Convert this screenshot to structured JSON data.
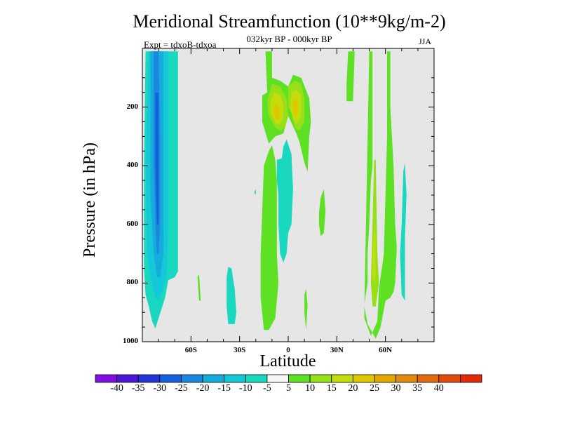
{
  "chart_data": {
    "type": "contour",
    "title": "Meridional Streamfunction (10**9kg/m-2)",
    "subtitle": "032kyr BP - 000kyr BP",
    "expt_label": "Expt = tdxoB-tdxoa",
    "season": "JJA",
    "xlabel": "Latitude",
    "ylabel": "Pressure (in hPa)",
    "xlim": [
      -90,
      90
    ],
    "ylim": [
      1000,
      0
    ],
    "y_reversed": true,
    "x_ticks": [
      {
        "value": -60,
        "label": "60S"
      },
      {
        "value": -30,
        "label": "30S"
      },
      {
        "value": 0,
        "label": "0"
      },
      {
        "value": 30,
        "label": "30N"
      },
      {
        "value": 60,
        "label": "60N"
      }
    ],
    "y_ticks": [
      {
        "value": 200,
        "label": "200"
      },
      {
        "value": 400,
        "label": "400"
      },
      {
        "value": 600,
        "label": "600"
      },
      {
        "value": 800,
        "label": "800"
      },
      {
        "value": 1000,
        "label": "1000"
      }
    ],
    "background_color": "#e6e6e6",
    "colorbar": {
      "colors": [
        "#7f10e0",
        "#4b18d8",
        "#2535d6",
        "#1560dc",
        "#1a88e0",
        "#15acdc",
        "#14c8d8",
        "#1ad8c0",
        "#f5f5f5",
        "#5ee024",
        "#96e018",
        "#c2dc0c",
        "#e0c800",
        "#e0a800",
        "#e08a10",
        "#e06a10",
        "#e04c0c",
        "#e02a08"
      ],
      "tick_labels": [
        "-40",
        "-35",
        "-30",
        "-25",
        "-20",
        "-15",
        "-10",
        "-5",
        "5",
        "10",
        "15",
        "20",
        "25",
        "30",
        "35",
        "40"
      ]
    },
    "regions": [
      {
        "level": -5,
        "points": [
          [
            -88,
            10
          ],
          [
            -80,
            10
          ],
          [
            -76,
            10
          ],
          [
            -71,
            10
          ],
          [
            -68,
            10
          ],
          [
            -68,
            200
          ],
          [
            -68,
            400
          ],
          [
            -68,
            600
          ],
          [
            -68,
            760
          ],
          [
            -70,
            780
          ],
          [
            -74,
            790
          ],
          [
            -76,
            850
          ],
          [
            -80,
            920
          ],
          [
            -82,
            955
          ],
          [
            -84,
            930
          ],
          [
            -86,
            880
          ],
          [
            -88,
            840
          ],
          [
            -89,
            750
          ],
          [
            -89,
            400
          ]
        ]
      },
      {
        "level": -10,
        "points": [
          [
            -86,
            10
          ],
          [
            -78,
            10
          ],
          [
            -74,
            10
          ],
          [
            -74,
            300
          ],
          [
            -74,
            600
          ],
          [
            -75,
            780
          ],
          [
            -78,
            830
          ],
          [
            -80,
            860
          ],
          [
            -82,
            850
          ],
          [
            -85,
            780
          ],
          [
            -87,
            700
          ],
          [
            -88,
            400
          ]
        ]
      },
      {
        "level": -15,
        "points": [
          [
            -85,
            10
          ],
          [
            -79,
            10
          ],
          [
            -77,
            10
          ],
          [
            -77,
            400
          ],
          [
            -77,
            700
          ],
          [
            -79,
            780
          ],
          [
            -81,
            780
          ],
          [
            -83,
            700
          ],
          [
            -85,
            500
          ]
        ]
      },
      {
        "level": -20,
        "points": [
          [
            -83,
            10
          ],
          [
            -80,
            10
          ],
          [
            -79,
            300
          ],
          [
            -79,
            600
          ],
          [
            -80,
            700
          ],
          [
            -81,
            700
          ],
          [
            -82,
            600
          ],
          [
            -83,
            400
          ]
        ]
      },
      {
        "level": -25,
        "points": [
          [
            -82,
            150
          ],
          [
            -80,
            150
          ],
          [
            -80,
            350
          ],
          [
            -80,
            600
          ],
          [
            -81,
            600
          ],
          [
            -82,
            400
          ]
        ]
      },
      {
        "level": -5,
        "points": [
          [
            -38,
            780
          ],
          [
            -37,
            745
          ],
          [
            -35,
            750
          ],
          [
            -33,
            820
          ],
          [
            -32,
            900
          ],
          [
            -33,
            940
          ],
          [
            -37,
            940
          ],
          [
            -38,
            880
          ]
        ]
      },
      {
        "level": -5,
        "points": [
          [
            -7,
            380
          ],
          [
            -4,
            375
          ],
          [
            -3,
            335
          ],
          [
            -1,
            310
          ],
          [
            2,
            360
          ],
          [
            3,
            480
          ],
          [
            2,
            600
          ],
          [
            0,
            630
          ],
          [
            -1,
            700
          ],
          [
            -3,
            730
          ],
          [
            -5,
            700
          ],
          [
            -6,
            600
          ],
          [
            -6,
            500
          ],
          [
            -7,
            450
          ]
        ]
      },
      {
        "level": -5,
        "points": [
          [
            -21,
            490
          ],
          [
            -20,
            480
          ],
          [
            -20,
            500
          ]
        ]
      },
      {
        "level": -5,
        "points": [
          [
            71,
            420
          ],
          [
            72,
            390
          ],
          [
            73,
            500
          ],
          [
            72,
            650
          ],
          [
            72,
            860
          ],
          [
            70,
            840
          ],
          [
            69,
            700
          ],
          [
            70,
            600
          ]
        ]
      },
      {
        "level": 5,
        "points": [
          [
            -14,
            10
          ],
          [
            -10,
            10
          ],
          [
            -10,
            100
          ],
          [
            -5,
            110
          ],
          [
            0,
            130
          ],
          [
            3,
            90
          ],
          [
            8,
            100
          ],
          [
            13,
            170
          ],
          [
            14,
            250
          ],
          [
            13,
            300
          ],
          [
            12,
            420
          ],
          [
            10,
            390
          ],
          [
            7,
            320
          ],
          [
            5,
            290
          ],
          [
            0,
            230
          ],
          [
            -3,
            290
          ],
          [
            -8,
            300
          ],
          [
            -12,
            325
          ],
          [
            -16,
            250
          ],
          [
            -16,
            160
          ],
          [
            -13,
            150
          ]
        ]
      },
      {
        "level": 5,
        "points": [
          [
            -12,
            350
          ],
          [
            -10,
            330
          ],
          [
            -8,
            380
          ],
          [
            -7,
            450
          ],
          [
            -7,
            700
          ],
          [
            -6,
            800
          ],
          [
            -8,
            920
          ],
          [
            -12,
            960
          ],
          [
            -15,
            960
          ],
          [
            -17,
            850
          ],
          [
            -17,
            700
          ],
          [
            -16,
            550
          ],
          [
            -15,
            400
          ]
        ]
      },
      {
        "level": 5,
        "points": [
          [
            20,
            510
          ],
          [
            22,
            480
          ],
          [
            23,
            555
          ],
          [
            22,
            630
          ],
          [
            20,
            640
          ],
          [
            19,
            600
          ],
          [
            19,
            560
          ]
        ]
      },
      {
        "level": 5,
        "points": [
          [
            10,
            840
          ],
          [
            11,
            820
          ],
          [
            12,
            875
          ],
          [
            11,
            960
          ],
          [
            10,
            900
          ]
        ]
      },
      {
        "level": 5,
        "points": [
          [
            -55,
            770
          ],
          [
            -56,
            780
          ],
          [
            -55,
            860
          ],
          [
            -54,
            860
          ]
        ]
      },
      {
        "level": 5,
        "points": [
          [
            37,
            10
          ],
          [
            41,
            10
          ],
          [
            40,
            180
          ],
          [
            36,
            180
          ],
          [
            36,
            120
          ]
        ]
      },
      {
        "level": 5,
        "points": [
          [
            50,
            10
          ],
          [
            52,
            10
          ],
          [
            52,
            100
          ],
          [
            52,
            200
          ],
          [
            52,
            400
          ],
          [
            51,
            450
          ],
          [
            50,
            600
          ],
          [
            49,
            700
          ],
          [
            49,
            800
          ],
          [
            47,
            870
          ],
          [
            47,
            920
          ],
          [
            51,
            980
          ],
          [
            55,
            930
          ],
          [
            56,
            820
          ],
          [
            59,
            700
          ],
          [
            60,
            500
          ],
          [
            61,
            300
          ],
          [
            61,
            10
          ],
          [
            63,
            10
          ],
          [
            63,
            200
          ],
          [
            65,
            400
          ],
          [
            66,
            600
          ],
          [
            67,
            680
          ],
          [
            66,
            800
          ],
          [
            65,
            830
          ],
          [
            63,
            850
          ],
          [
            60,
            860
          ],
          [
            57,
            950
          ],
          [
            54,
            990
          ],
          [
            49,
            940
          ],
          [
            47,
            880
          ]
        ]
      },
      {
        "level": 10,
        "points": [
          [
            -10,
            120
          ],
          [
            -5,
            130
          ],
          [
            -1,
            170
          ],
          [
            0,
            230
          ],
          [
            -2,
            270
          ],
          [
            -5,
            280
          ],
          [
            -8,
            270
          ],
          [
            -12,
            230
          ],
          [
            -13,
            180
          ]
        ]
      },
      {
        "level": 10,
        "points": [
          [
            0,
            130
          ],
          [
            4,
            110
          ],
          [
            8,
            120
          ],
          [
            10,
            170
          ],
          [
            10,
            250
          ],
          [
            7,
            280
          ],
          [
            4,
            270
          ],
          [
            2,
            220
          ],
          [
            0,
            200
          ]
        ]
      },
      {
        "level": 15,
        "points": [
          [
            -9,
            150
          ],
          [
            -5,
            160
          ],
          [
            -3,
            190
          ],
          [
            -3,
            230
          ],
          [
            -5,
            260
          ],
          [
            -8,
            255
          ],
          [
            -11,
            220
          ],
          [
            -11,
            180
          ]
        ]
      },
      {
        "level": 15,
        "points": [
          [
            2,
            150
          ],
          [
            5,
            140
          ],
          [
            8,
            160
          ],
          [
            8,
            230
          ],
          [
            5,
            260
          ],
          [
            3,
            240
          ],
          [
            1,
            200
          ]
        ]
      },
      {
        "level": 20,
        "points": [
          [
            -8,
            190
          ],
          [
            -6,
            190
          ],
          [
            -5,
            215
          ],
          [
            -6,
            245
          ],
          [
            -8,
            240
          ],
          [
            -9,
            215
          ]
        ]
      },
      {
        "level": 20,
        "points": [
          [
            3,
            180
          ],
          [
            5,
            170
          ],
          [
            6,
            190
          ],
          [
            6,
            220
          ],
          [
            4,
            235
          ],
          [
            3,
            210
          ]
        ]
      },
      {
        "level": 10,
        "points": [
          [
            53,
            380
          ],
          [
            54,
            380
          ],
          [
            55,
            700
          ],
          [
            56,
            800
          ],
          [
            54,
            880
          ],
          [
            52,
            880
          ],
          [
            51,
            800
          ],
          [
            52,
            600
          ]
        ]
      },
      {
        "level": 15,
        "points": [
          [
            53,
            600
          ],
          [
            54,
            650
          ],
          [
            54,
            780
          ],
          [
            53,
            800
          ],
          [
            52,
            780
          ],
          [
            52,
            700
          ]
        ]
      }
    ]
  }
}
